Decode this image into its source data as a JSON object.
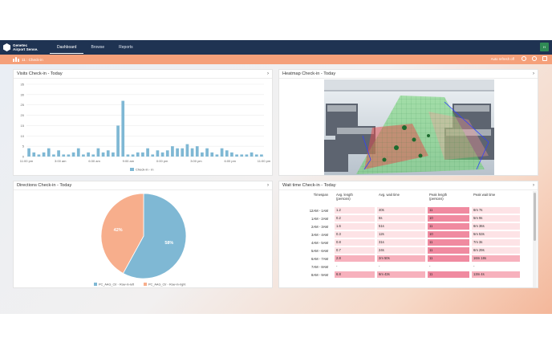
{
  "app": {
    "logo_line1": "Genetec",
    "logo_line2": "Airport Sense.",
    "nav": [
      "Dashboard",
      "Browse",
      "Reports"
    ],
    "user_initials": "H",
    "breadcrumb": "11 : Check-in",
    "auto_refresh": "Auto refresh off"
  },
  "visits": {
    "title": "Visits Check-in - Today",
    "chart_data": {
      "type": "bar",
      "title": "Visits Check-in - Today",
      "ylim": [
        0,
        35
      ],
      "y_ticks": [
        "0",
        "5",
        "10",
        "15",
        "20",
        "25",
        "30",
        "35"
      ],
      "x_ticks": [
        "11:00 pm",
        "3:00 am",
        "6:30 am",
        "9:00 am",
        "0:00 pm",
        "3:00 pm",
        "6:00 pm",
        "11:00 pm"
      ],
      "series": [
        {
          "name": "Check-in - in",
          "values": [
            4,
            2,
            1,
            2,
            4,
            1,
            3,
            1,
            1,
            2,
            4,
            1,
            2,
            1,
            4,
            2,
            3,
            2,
            15,
            27,
            1,
            1,
            2,
            2,
            4,
            1,
            3,
            2,
            3,
            5,
            4,
            4,
            6,
            4,
            5,
            2,
            4,
            2,
            1,
            4,
            3,
            2,
            1,
            1,
            1,
            2,
            1,
            1
          ]
        }
      ],
      "color": "#7fb8d4"
    }
  },
  "heatmap": {
    "title": "Heatmap Check-in - Today"
  },
  "directions": {
    "title": "Directions Check-in - Today",
    "chart_data": {
      "type": "pie",
      "series": [
        {
          "name": "",
          "values": [
            58,
            42
          ]
        }
      ],
      "labels": [
        "58%",
        "42%"
      ],
      "legend": [
        "PC_AAG_Ctr - Row-in-left",
        "PC_AAG_Ctr - Row-in-right"
      ],
      "colors": [
        "#7fb8d4",
        "#f7ae8c"
      ]
    }
  },
  "waittime": {
    "title": "Wait time Check-in - Today",
    "headers": [
      "Timespan",
      "Avg. length\n(persons)",
      "Avg. wait time",
      "Peak length\n(persons)",
      "Peak wait time"
    ],
    "rows": [
      [
        "12AM - 1AM",
        "1.2",
        "40s",
        "11",
        "6m 7s"
      ],
      [
        "1AM - 2AM",
        "0.2",
        "6s",
        "10",
        "5m 9s"
      ],
      [
        "2AM - 3AM",
        "1.6",
        "51s",
        "11",
        "6m 36s"
      ],
      [
        "3AM - 4AM",
        "0.3",
        "12s",
        "10",
        "5m 53s"
      ],
      [
        "4AM - 5AM",
        "0.8",
        "31s",
        "11",
        "7m 3s"
      ],
      [
        "5AM - 6AM",
        "0.7",
        "24s",
        "11",
        "6m 29s"
      ],
      [
        "6AM - 7AM",
        "2.8",
        "2m 50s",
        "11",
        "16m 18s"
      ],
      [
        "7AM - 8AM",
        "-",
        "-",
        "-",
        "-"
      ],
      [
        "8AM - 9AM",
        "6.8",
        "6m 43s",
        "11",
        "13m 4s"
      ]
    ],
    "cell_colors": {
      "light": "#fde3e6",
      "mid": "#f7b1bd",
      "strong": "#f08aa0"
    }
  }
}
